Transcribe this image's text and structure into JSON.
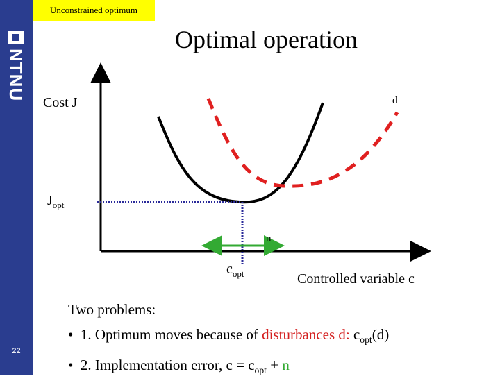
{
  "header": {
    "tag_label": "Unconstrained optimum",
    "title": "Optimal operation",
    "logo_text": "NTNU",
    "page_number": "22"
  },
  "diagram": {
    "y_axis_label": "Cost J",
    "disturbance_label": "d",
    "j_opt_main": "J",
    "j_opt_sub": "opt",
    "noise_label": "n",
    "c_opt_main": "c",
    "c_opt_sub": "opt",
    "x_axis_label": "Controlled variable c",
    "colors": {
      "nominal_curve": "#000000",
      "disturbed_curve": "#e02020",
      "guide_lines": "#2a2a9a",
      "implementation_error": "#33aa33"
    }
  },
  "notes": {
    "heading": "Two problems:",
    "bullet_char": "•",
    "item1_prefix": "1. Optimum moves because of ",
    "item1_red": "disturbances d: ",
    "item1_c": "c",
    "item1_sub": "opt",
    "item1_end": "(d)",
    "item2_prefix": "2. Implementation error, c = c",
    "item2_sub": "opt",
    "item2_plus": " + ",
    "item2_n": "n"
  }
}
